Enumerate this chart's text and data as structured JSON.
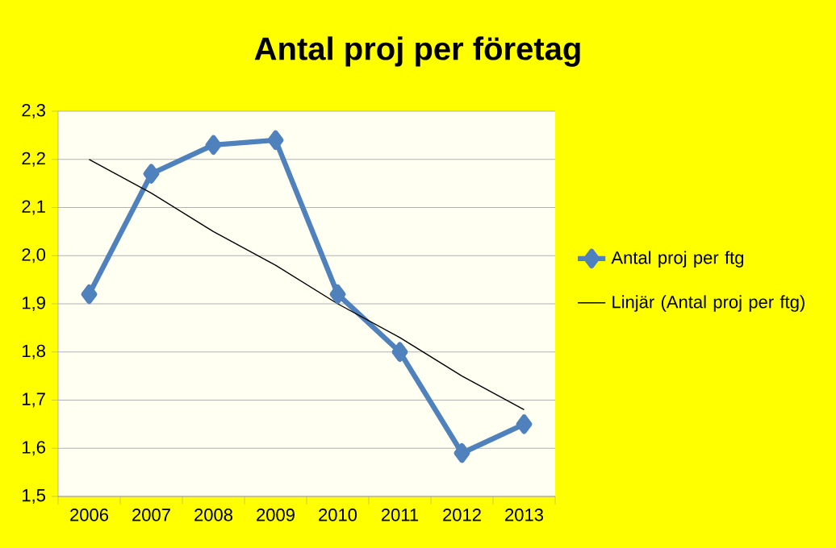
{
  "chart_data": {
    "type": "line",
    "title": "Antal proj per företag",
    "categories": [
      "2006",
      "2007",
      "2008",
      "2009",
      "2010",
      "2011",
      "2012",
      "2013"
    ],
    "series": [
      {
        "name": "Antal proj per ftg",
        "color": "#4f81bd",
        "marker": "diamond",
        "values": [
          1.92,
          2.17,
          2.23,
          2.24,
          1.92,
          1.8,
          1.59,
          1.65
        ]
      },
      {
        "name": "Linjär (Antal proj per ftg)",
        "color": "#000000",
        "marker": "none",
        "values": [
          2.2,
          2.13,
          2.05,
          1.98,
          1.9,
          1.83,
          1.75,
          1.68
        ]
      }
    ],
    "ylim": [
      1.5,
      2.3
    ],
    "yticks": [
      {
        "value": 1.5,
        "label": "1,5"
      },
      {
        "value": 1.6,
        "label": "1,6"
      },
      {
        "value": 1.7,
        "label": "1,7"
      },
      {
        "value": 1.8,
        "label": "1,8"
      },
      {
        "value": 1.9,
        "label": "1,9"
      },
      {
        "value": 2.0,
        "label": "2,0"
      },
      {
        "value": 2.1,
        "label": "2,1"
      },
      {
        "value": 2.2,
        "label": "2,2"
      },
      {
        "value": 2.3,
        "label": "2,3"
      }
    ],
    "grid": "y",
    "legend": "right",
    "line_style": "solid"
  }
}
